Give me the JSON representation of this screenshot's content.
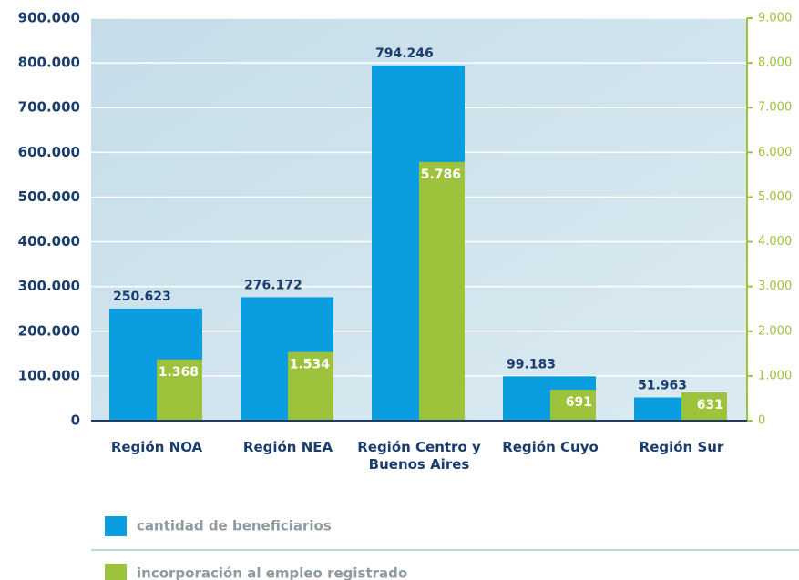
{
  "chart_data": {
    "type": "bar",
    "categories": [
      "Región NOA",
      "Región NEA",
      "Región Centro y Buenos Aires",
      "Región Cuyo",
      "Región Sur"
    ],
    "series": [
      {
        "name": "cantidad de beneficiarios",
        "color": "#0a9ee0",
        "values": [
          250623,
          276172,
          794246,
          99183,
          51963
        ],
        "value_labels": [
          "250.623",
          "276.172",
          "794.246",
          "99.183",
          "51.963"
        ]
      },
      {
        "name": "incorporación al empleo registrado",
        "color": "#9dc23c",
        "axis": "y2",
        "values": [
          1368,
          1534,
          5786,
          691,
          631
        ],
        "value_labels": [
          "1.368",
          "1.534",
          "5.786",
          "691",
          "631"
        ]
      }
    ],
    "ylim": [
      0,
      900000
    ],
    "yticks": [
      0,
      {
        "value": 100000,
        "label": "100.000"
      },
      {
        "value": 200000,
        "label": "200.000"
      },
      {
        "value": 300000,
        "label": "300.000"
      },
      {
        "value": 400000,
        "label": "400.000"
      },
      {
        "value": 500000,
        "label": "500.000"
      },
      {
        "value": 600000,
        "label": "600.000"
      },
      {
        "value": 700000,
        "label": "700.000"
      },
      {
        "value": 800000,
        "label": "800.000"
      },
      {
        "value": 900000,
        "label": "900.000"
      }
    ],
    "y2lim": [
      0,
      9000
    ],
    "y2ticks": [
      0,
      {
        "value": 1000,
        "label": "1.000"
      },
      {
        "value": 2000,
        "label": "2.000"
      },
      {
        "value": 3000,
        "label": "3.000"
      },
      {
        "value": 4000,
        "label": "4.000"
      },
      {
        "value": 5000,
        "label": "5.000"
      },
      {
        "value": 6000,
        "label": "6.000"
      },
      {
        "value": 7000,
        "label": "7.000"
      },
      {
        "value": 8000,
        "label": "8.000"
      },
      {
        "value": 9000,
        "label": "9.000"
      }
    ],
    "grid": true
  }
}
